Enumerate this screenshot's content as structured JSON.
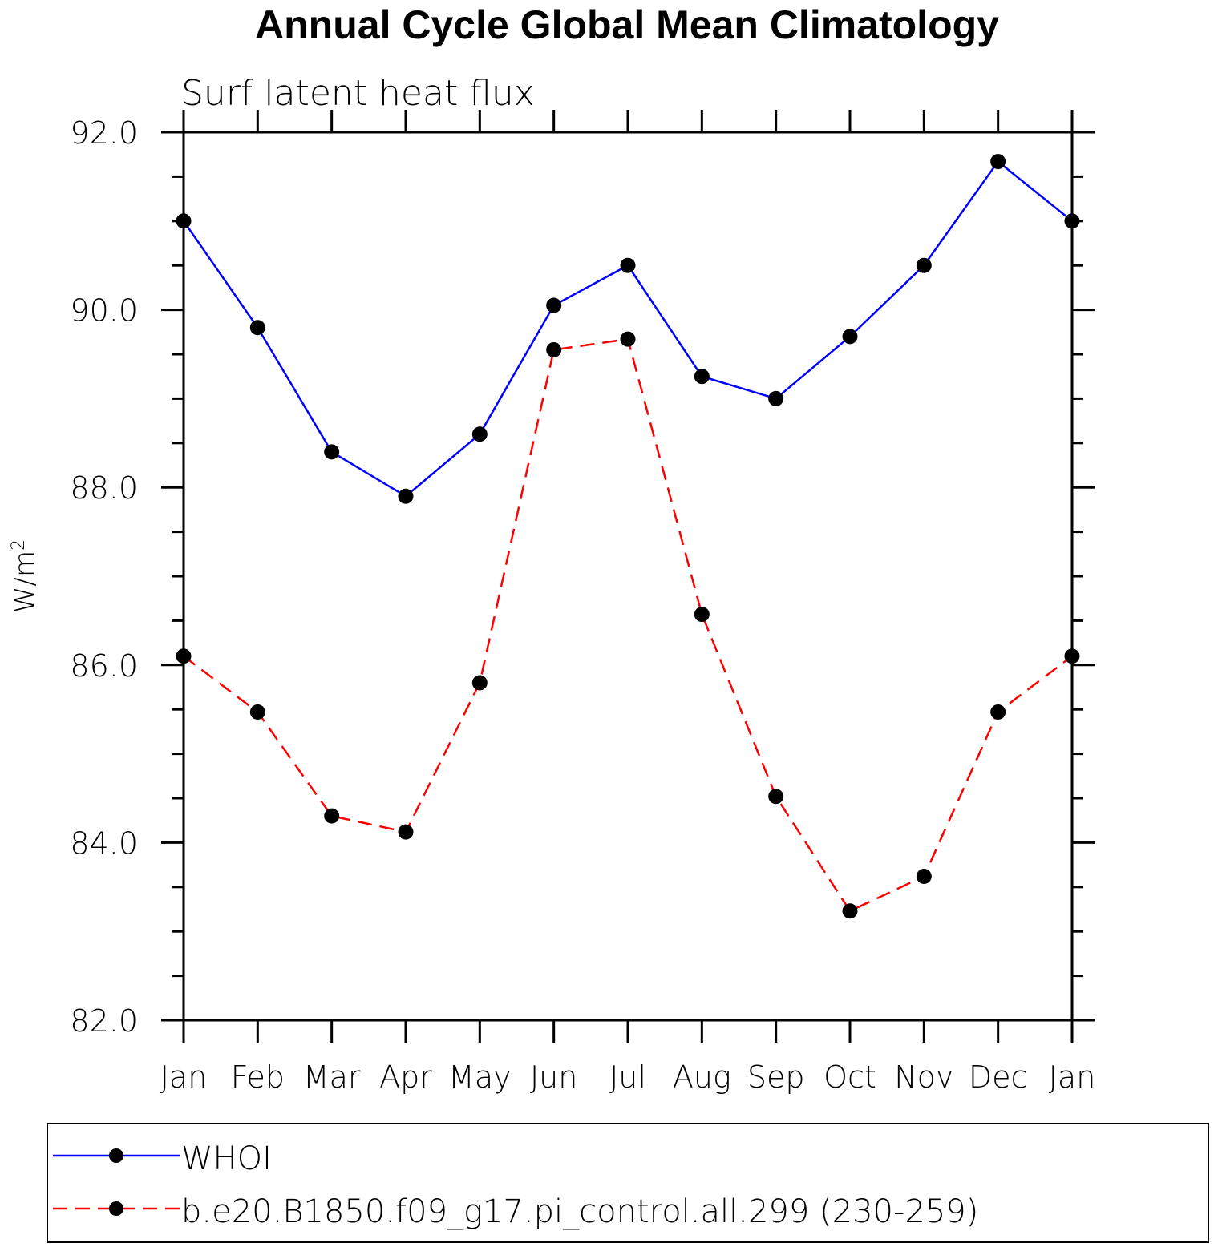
{
  "chart_data": {
    "type": "line",
    "title": "Annual Cycle Global Mean Climatology",
    "subtitle": "Surf latent heat flux",
    "xlabel": "",
    "ylabel": "W/m",
    "ylabel_superscript": "2",
    "categories": [
      "Jan",
      "Feb",
      "Mar",
      "Apr",
      "May",
      "Jun",
      "Jul",
      "Aug",
      "Sep",
      "Oct",
      "Nov",
      "Dec",
      "Jan"
    ],
    "ylim": [
      82.0,
      92.0
    ],
    "yticks": [
      "82.0",
      "84.0",
      "86.0",
      "88.0",
      "90.0",
      "92.0"
    ],
    "ytick_values": [
      82,
      84,
      86,
      88,
      90,
      92
    ],
    "series": [
      {
        "name": "WHOI",
        "color": "#0000ff",
        "dash": "solid",
        "values": [
          91.0,
          89.8,
          88.4,
          87.9,
          88.6,
          90.05,
          90.5,
          89.25,
          89.0,
          89.7,
          90.5,
          91.67,
          91.0
        ]
      },
      {
        "name": "b.e20.B1850.f09_g17.pi_control.all.299 (230-259)",
        "color": "#ff0000",
        "dash": "dashed",
        "values": [
          86.1,
          85.47,
          84.3,
          84.12,
          85.8,
          89.55,
          89.67,
          86.57,
          84.52,
          83.23,
          83.62,
          85.47,
          86.1
        ]
      }
    ],
    "grid": false,
    "legend_position": "bottom"
  }
}
